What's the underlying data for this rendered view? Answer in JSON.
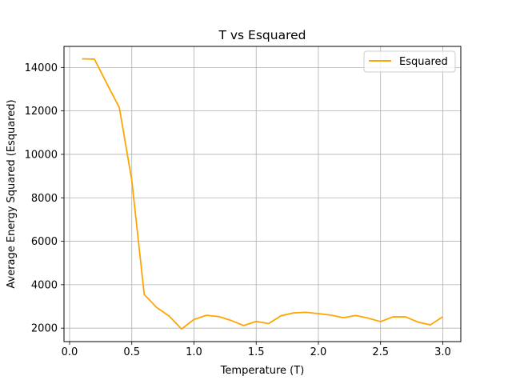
{
  "chart_data": {
    "type": "line",
    "title": "T vs Esquared",
    "xlabel": "Temperature (T)",
    "ylabel": "Average Energy Squared (Esquared)",
    "xlim": [
      -0.045,
      3.145
    ],
    "ylim": [
      1380,
      14970
    ],
    "xticks": [
      0.0,
      0.5,
      1.0,
      1.5,
      2.0,
      2.5,
      3.0
    ],
    "xtick_labels": [
      "0.0",
      "0.5",
      "1.0",
      "1.5",
      "2.0",
      "2.5",
      "3.0"
    ],
    "yticks": [
      2000,
      4000,
      6000,
      8000,
      10000,
      12000,
      14000
    ],
    "ytick_labels": [
      "2000",
      "4000",
      "6000",
      "8000",
      "10000",
      "12000",
      "14000"
    ],
    "grid": true,
    "legend_position": "top-right",
    "series": [
      {
        "name": "Esquared",
        "color": "#ffa500",
        "x": [
          0.1,
          0.2,
          0.3,
          0.4,
          0.5,
          0.6,
          0.7,
          0.8,
          0.9,
          1.0,
          1.1,
          1.2,
          1.3,
          1.4,
          1.5,
          1.6,
          1.7,
          1.8,
          1.9,
          2.0,
          2.1,
          2.2,
          2.3,
          2.4,
          2.5,
          2.6,
          2.7,
          2.8,
          2.9,
          3.0
        ],
        "y": [
          14400,
          14380,
          13250,
          12150,
          8800,
          3550,
          2950,
          2560,
          1960,
          2400,
          2590,
          2530,
          2350,
          2120,
          2310,
          2210,
          2570,
          2700,
          2730,
          2670,
          2600,
          2480,
          2580,
          2460,
          2300,
          2520,
          2520,
          2280,
          2150,
          2520
        ]
      }
    ]
  }
}
